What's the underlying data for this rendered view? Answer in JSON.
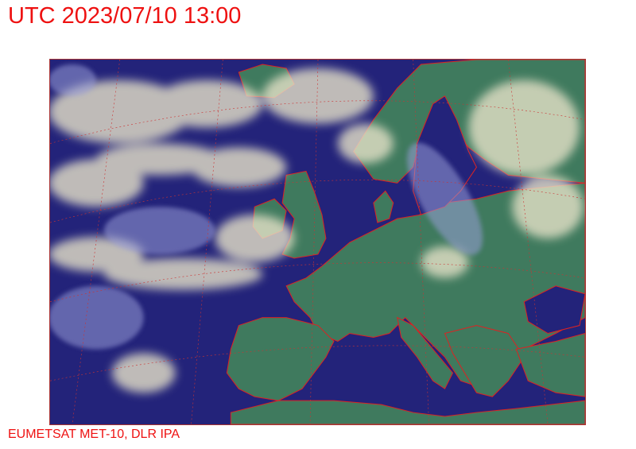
{
  "header": {
    "title": "UTC 2023/07/10 13:00"
  },
  "footer": {
    "credit": "EUMETSAT MET-10, DLR IPA"
  },
  "map": {
    "type": "satellite-composite",
    "region": "Europe and North Atlantic",
    "colors": {
      "ocean": "#23237a",
      "land": "#3f7a5e",
      "cloud": "#e6e2c8",
      "coastline": "#dd2222",
      "graticule": "#cc3333"
    }
  }
}
